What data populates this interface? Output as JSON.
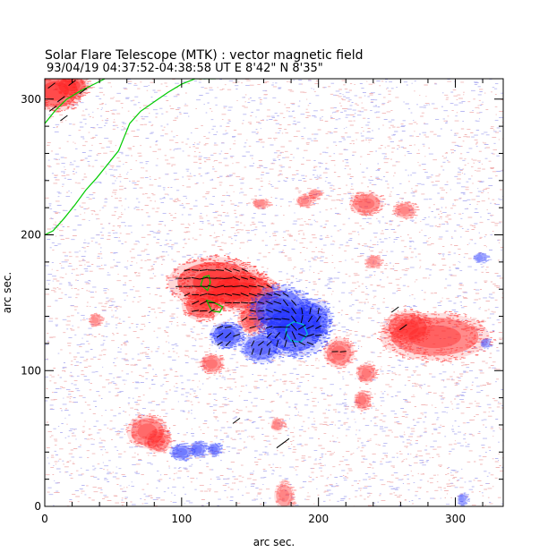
{
  "chart_data": {
    "type": "heatmap",
    "title": "Solar Flare Telescope (MTK) : vector magnetic field",
    "subtitle": "93/04/19   04:37:52-04:38:58 UT     E 8'42\"   N 8'35\"",
    "xlabel": "arc sec.",
    "ylabel": "arc sec.",
    "xlim": [
      0,
      335
    ],
    "ylim": [
      0,
      315
    ],
    "xticks": [
      0,
      100,
      200,
      300
    ],
    "yticks": [
      0,
      100,
      200,
      300
    ],
    "x_minor_step": 20,
    "y_minor_step": 20,
    "colors": {
      "positive": "#ff2020",
      "negative": "#2030ff",
      "background_noise_pos": "#f2b8b8",
      "background_noise_neg": "#b8b8f2",
      "contour": "#00cc00",
      "vector": "#000000"
    },
    "positive_regions": [
      {
        "cx": 125,
        "cy": 165,
        "rx": 28,
        "ry": 15,
        "strength": 1.0
      },
      {
        "cx": 145,
        "cy": 158,
        "rx": 22,
        "ry": 12,
        "strength": 0.9
      },
      {
        "cx": 115,
        "cy": 148,
        "rx": 12,
        "ry": 9,
        "strength": 0.85
      },
      {
        "cx": 285,
        "cy": 125,
        "rx": 32,
        "ry": 14,
        "strength": 0.7
      },
      {
        "cx": 265,
        "cy": 132,
        "rx": 14,
        "ry": 10,
        "strength": 0.6
      },
      {
        "cx": 215,
        "cy": 113,
        "rx": 9,
        "ry": 9,
        "strength": 0.55
      },
      {
        "cx": 235,
        "cy": 98,
        "rx": 6,
        "ry": 6,
        "strength": 0.45
      },
      {
        "cx": 232,
        "cy": 78,
        "rx": 5,
        "ry": 6,
        "strength": 0.45
      },
      {
        "cx": 235,
        "cy": 223,
        "rx": 10,
        "ry": 7,
        "strength": 0.5
      },
      {
        "cx": 263,
        "cy": 218,
        "rx": 7,
        "ry": 5,
        "strength": 0.35
      },
      {
        "cx": 190,
        "cy": 225,
        "rx": 5,
        "ry": 4,
        "strength": 0.35
      },
      {
        "cx": 158,
        "cy": 223,
        "rx": 5,
        "ry": 3,
        "strength": 0.3
      },
      {
        "cx": 75,
        "cy": 55,
        "rx": 12,
        "ry": 10,
        "strength": 0.6
      },
      {
        "cx": 83,
        "cy": 48,
        "rx": 8,
        "ry": 7,
        "strength": 0.5
      },
      {
        "cx": 122,
        "cy": 105,
        "rx": 7,
        "ry": 6,
        "strength": 0.5
      },
      {
        "cx": 152,
        "cy": 138,
        "rx": 9,
        "ry": 9,
        "strength": 0.7
      },
      {
        "cx": 8,
        "cy": 306,
        "rx": 16,
        "ry": 12,
        "strength": 0.9
      },
      {
        "cx": 20,
        "cy": 310,
        "rx": 10,
        "ry": 7,
        "strength": 0.8
      },
      {
        "cx": 240,
        "cy": 180,
        "rx": 5,
        "ry": 4,
        "strength": 0.25
      },
      {
        "cx": 175,
        "cy": 8,
        "rx": 6,
        "ry": 8,
        "strength": 0.35
      },
      {
        "cx": 37,
        "cy": 137,
        "rx": 4,
        "ry": 4,
        "strength": 0.25
      },
      {
        "cx": 170,
        "cy": 60,
        "rx": 4,
        "ry": 4,
        "strength": 0.3
      },
      {
        "cx": 197,
        "cy": 230,
        "rx": 4,
        "ry": 3,
        "strength": 0.3
      }
    ],
    "negative_regions": [
      {
        "cx": 182,
        "cy": 130,
        "rx": 20,
        "ry": 16,
        "strength": 1.0
      },
      {
        "cx": 172,
        "cy": 145,
        "rx": 18,
        "ry": 14,
        "strength": 0.9
      },
      {
        "cx": 195,
        "cy": 138,
        "rx": 12,
        "ry": 12,
        "strength": 0.7
      },
      {
        "cx": 158,
        "cy": 117,
        "rx": 12,
        "ry": 9,
        "strength": 0.7
      },
      {
        "cx": 133,
        "cy": 126,
        "rx": 10,
        "ry": 8,
        "strength": 0.85
      },
      {
        "cx": 100,
        "cy": 40,
        "rx": 7,
        "ry": 5,
        "strength": 0.55
      },
      {
        "cx": 112,
        "cy": 42,
        "rx": 5,
        "ry": 5,
        "strength": 0.5
      },
      {
        "cx": 124,
        "cy": 42,
        "rx": 4,
        "ry": 4,
        "strength": 0.5
      },
      {
        "cx": 318,
        "cy": 183,
        "rx": 4,
        "ry": 3,
        "strength": 0.3
      },
      {
        "cx": 322,
        "cy": 120,
        "rx": 3,
        "ry": 3,
        "strength": 0.25
      },
      {
        "cx": 305,
        "cy": 5,
        "rx": 3,
        "ry": 4,
        "strength": 0.25
      }
    ],
    "contours": [
      {
        "color": "#00cc00",
        "points": [
          [
            0,
            200
          ],
          [
            6,
            203
          ],
          [
            14,
            212
          ],
          [
            22,
            222
          ],
          [
            30,
            233
          ],
          [
            38,
            242
          ],
          [
            46,
            252
          ],
          [
            54,
            262
          ],
          [
            58,
            272
          ],
          [
            62,
            282
          ],
          [
            70,
            291
          ],
          [
            80,
            298
          ],
          [
            90,
            305
          ],
          [
            100,
            311
          ],
          [
            110,
            315
          ],
          [
            125,
            315
          ]
        ]
      },
      {
        "color": "#00cc00",
        "points": [
          [
            0,
            282
          ],
          [
            8,
            292
          ],
          [
            16,
            300
          ],
          [
            26,
            306
          ],
          [
            36,
            311
          ],
          [
            44,
            315
          ]
        ]
      },
      {
        "color": "#00cc00",
        "points": [
          [
            114,
            163
          ],
          [
            119,
            159
          ],
          [
            121,
            165
          ],
          [
            120,
            170
          ],
          [
            116,
            169
          ],
          [
            114,
            163
          ]
        ]
      },
      {
        "color": "#00cc00",
        "points": [
          [
            118,
            152
          ],
          [
            124,
            150
          ],
          [
            130,
            147
          ],
          [
            128,
            143
          ],
          [
            122,
            144
          ],
          [
            118,
            152
          ]
        ]
      },
      {
        "color": "#00cccc",
        "points": [
          [
            176,
            128
          ],
          [
            180,
            122
          ],
          [
            187,
            121
          ],
          [
            192,
            127
          ],
          [
            189,
            134
          ],
          [
            182,
            136
          ],
          [
            177,
            133
          ],
          [
            176,
            128
          ]
        ]
      }
    ],
    "vector_field": {
      "x_range": [
        98,
        240
      ],
      "y_range": [
        108,
        182
      ],
      "step": 6
    }
  }
}
